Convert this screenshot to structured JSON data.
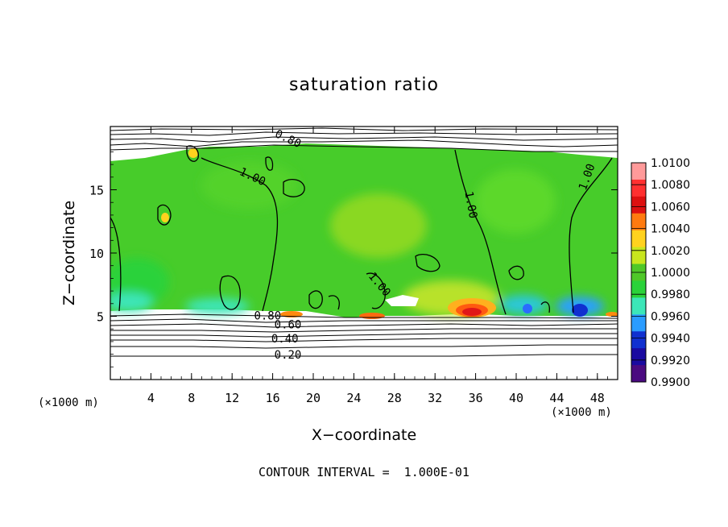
{
  "chart_data": {
    "type": "heatmap",
    "title": "saturation ratio",
    "xlabel": "X−coordinate",
    "ylabel": "Z−coordinate",
    "x_unit_left": "(×1000 m)",
    "x_unit_right": "(×1000 m)",
    "xlim": [
      0,
      50
    ],
    "ylim": [
      0,
      20
    ],
    "x_ticks": [
      4,
      8,
      12,
      16,
      20,
      24,
      28,
      32,
      36,
      40,
      44,
      48
    ],
    "y_ticks": [
      5,
      10,
      15
    ],
    "colorbar": {
      "levels": [
        "1.0100",
        "1.0080",
        "1.0060",
        "1.0040",
        "1.0020",
        "1.0000",
        "0.9980",
        "0.9960",
        "0.9940",
        "0.9920",
        "0.9900"
      ],
      "colors": [
        "#ff9a9a",
        "#ff3030",
        "#dd1010",
        "#ff7a10",
        "#ffd21e",
        "#c8e61e",
        "#4fc828",
        "#2ad23a",
        "#3ce6b8",
        "#2a9cff",
        "#1030d0",
        "#1a0aa0",
        "#4a0a80"
      ]
    },
    "contour_labels": [
      {
        "text": "0.80",
        "x": 15.5,
        "z": 5.0
      },
      {
        "text": "0.60",
        "x": 17.5,
        "z": 4.3
      },
      {
        "text": "0.40",
        "x": 17.2,
        "z": 3.2
      },
      {
        "text": "0.20",
        "x": 17.5,
        "z": 1.9
      },
      {
        "text": "0.80",
        "x": 17.5,
        "z": 19.0
      },
      {
        "text": "1.00",
        "x": 14.0,
        "z": 16.0
      },
      {
        "text": "1.00",
        "x": 35.5,
        "z": 13.8
      },
      {
        "text": "1.00",
        "x": 47.0,
        "z": 16.0
      },
      {
        "text": "1.00",
        "x": 26.5,
        "z": 7.5
      }
    ],
    "footer": "CONTOUR INTERVAL =  1.000E-01",
    "field_main_value": "1.0000",
    "cloud_base_z": 5,
    "cloud_top_z": 18
  }
}
